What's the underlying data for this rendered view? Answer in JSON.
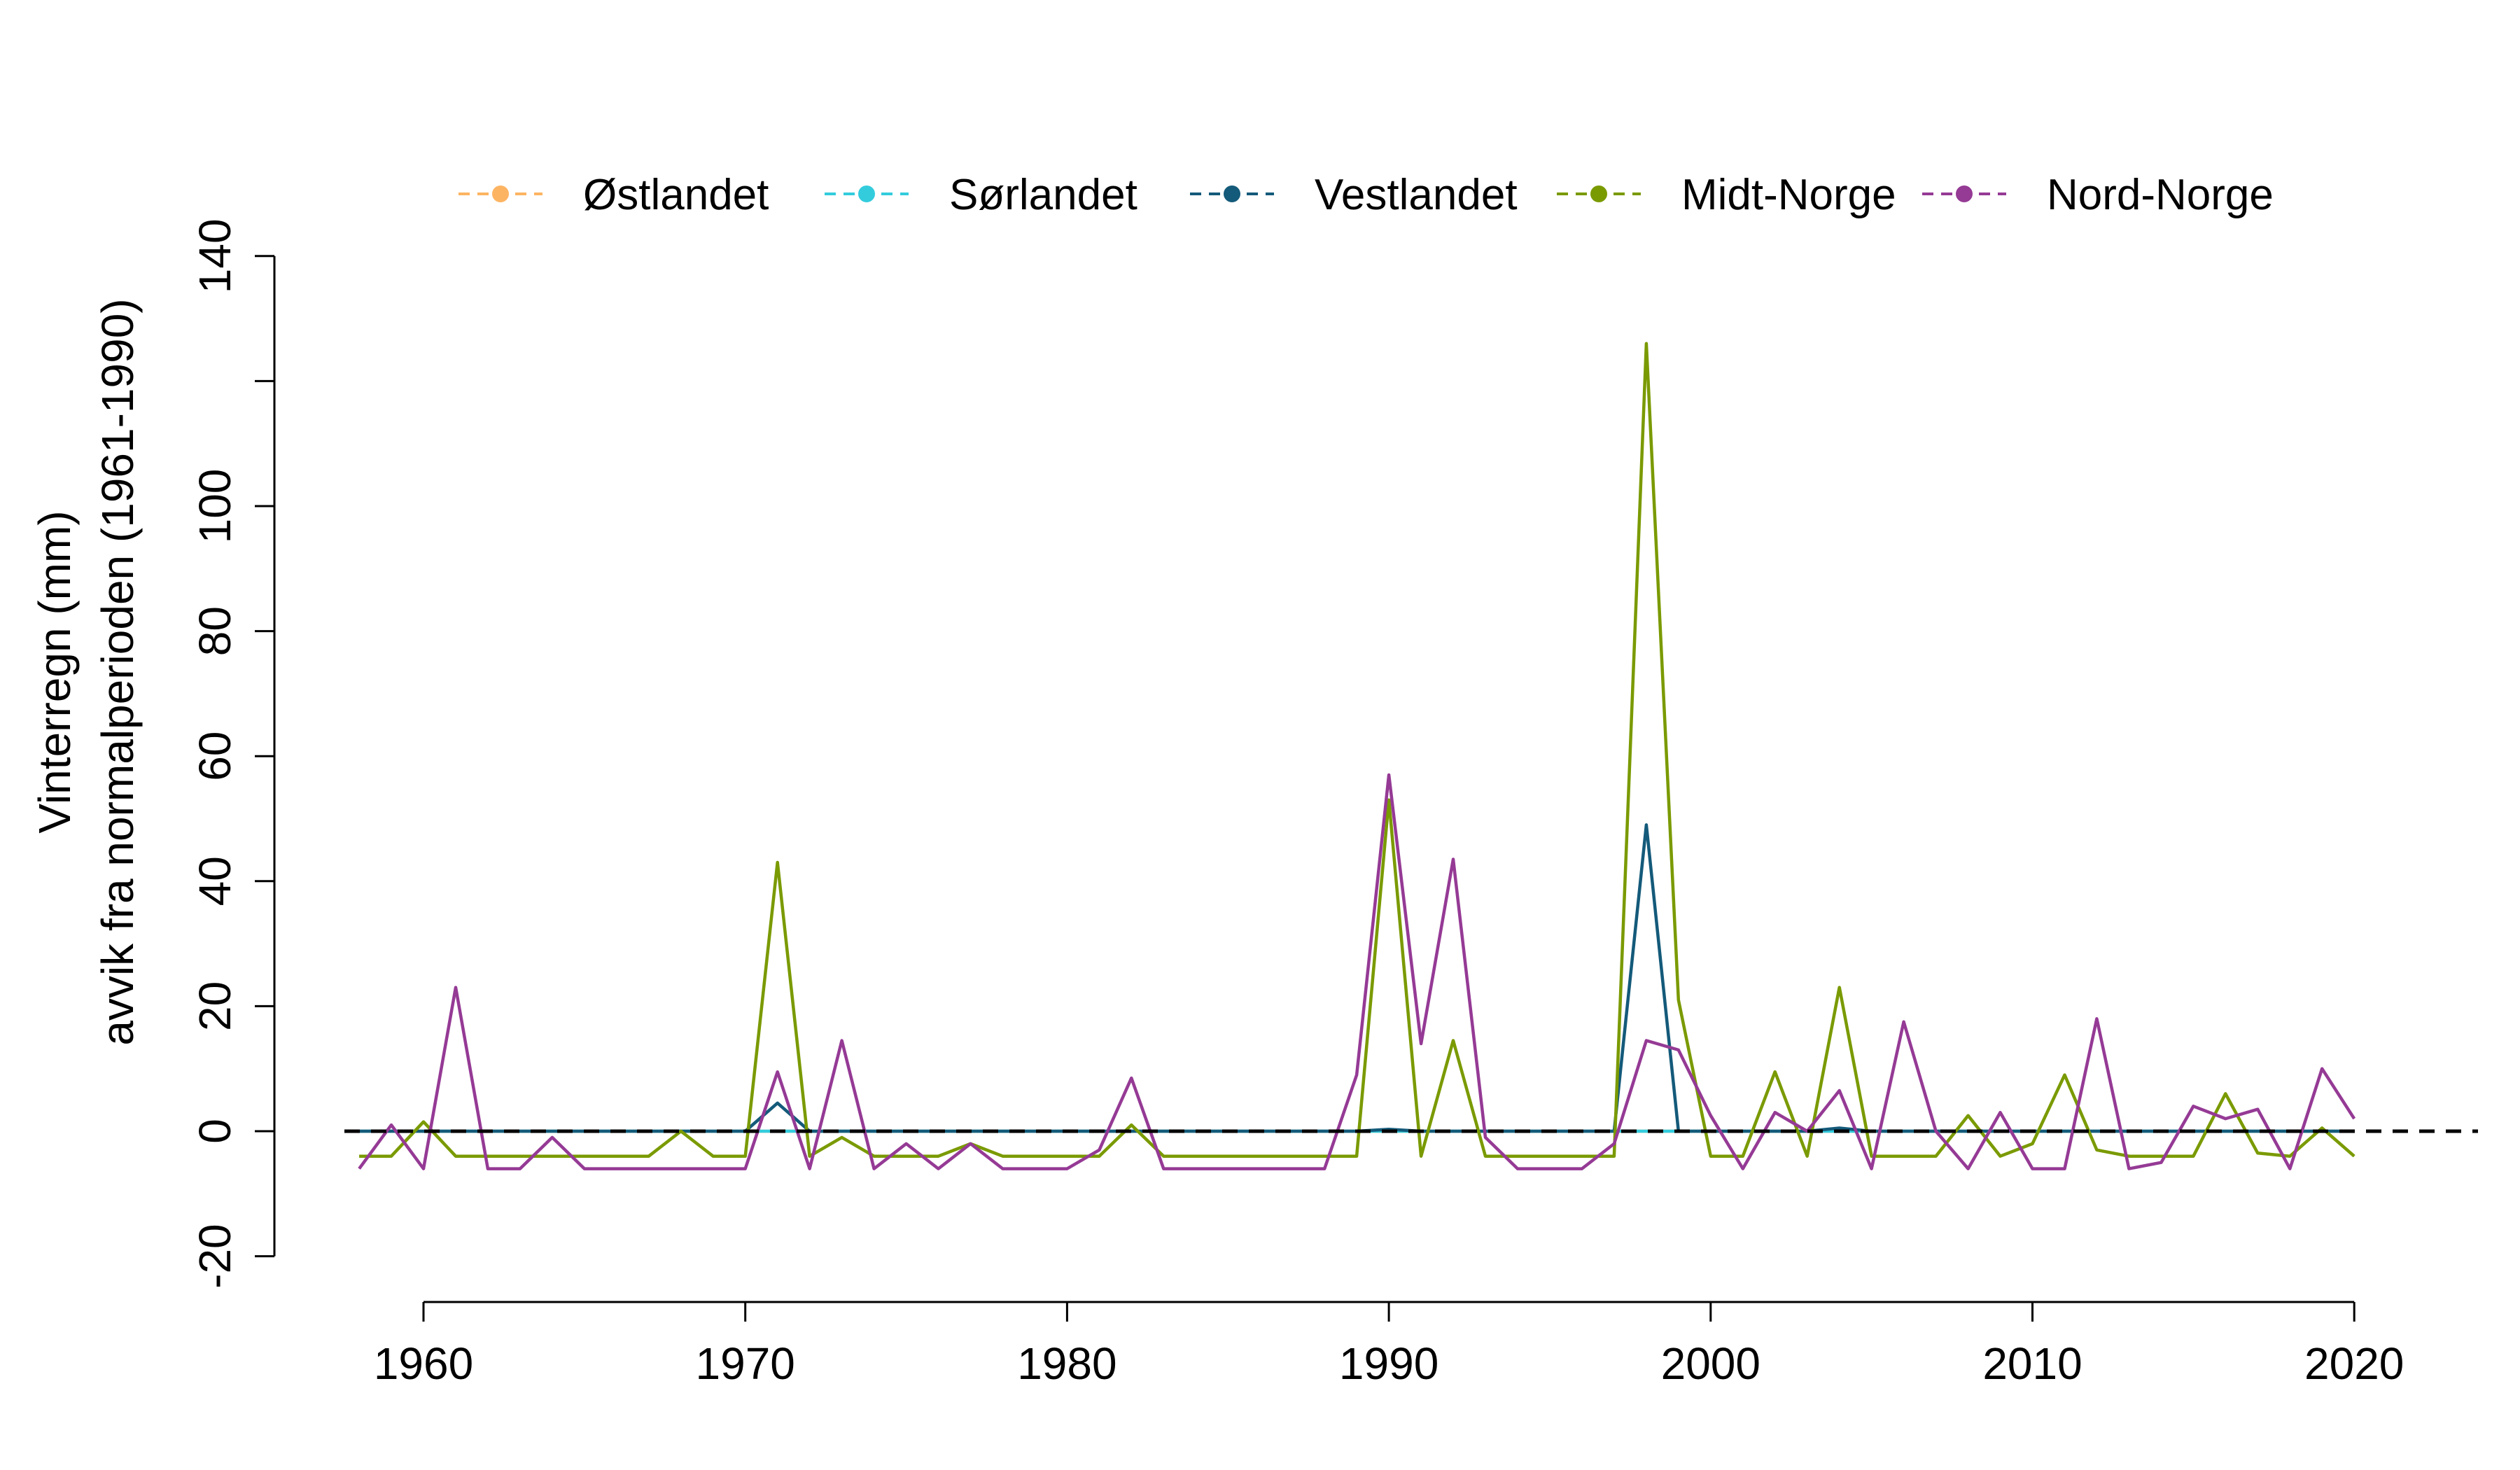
{
  "chart_data": {
    "type": "line",
    "ylabel_lines": [
      "Vinterregn (mm)",
      "avvik fra normalperioden (1961-1990)"
    ],
    "xlim": [
      1958,
      2020
    ],
    "ylim": [
      -20,
      140
    ],
    "xticks": [
      1960,
      1970,
      1980,
      1990,
      2000,
      2010,
      2020
    ],
    "yticks": [
      -20,
      0,
      20,
      40,
      60,
      80,
      100,
      120,
      140
    ],
    "ytick_labels": [
      "-20",
      "0",
      "20",
      "40",
      "60",
      "80",
      "100",
      "",
      "140"
    ],
    "reference_line": {
      "y": 0,
      "style": "dashed",
      "color": "#000000"
    },
    "legend_position": "top",
    "x": [
      1958,
      1959,
      1960,
      1961,
      1962,
      1963,
      1964,
      1965,
      1966,
      1967,
      1968,
      1969,
      1970,
      1971,
      1972,
      1973,
      1974,
      1975,
      1976,
      1977,
      1978,
      1979,
      1980,
      1981,
      1982,
      1983,
      1984,
      1985,
      1986,
      1987,
      1988,
      1989,
      1990,
      1991,
      1992,
      1993,
      1994,
      1995,
      1996,
      1997,
      1998,
      1999,
      2000,
      2001,
      2002,
      2003,
      2004,
      2005,
      2006,
      2007,
      2008,
      2009,
      2010,
      2011,
      2012,
      2013,
      2014,
      2015,
      2016,
      2017,
      2018,
      2019,
      2020
    ],
    "series": [
      {
        "name": "Østlandet",
        "color": "#FDB462",
        "values": [
          0,
          0,
          0,
          0,
          0,
          0,
          0,
          0,
          0,
          0,
          0,
          0,
          0,
          0,
          0,
          0,
          0,
          0,
          0,
          0,
          0,
          0,
          0,
          0,
          0,
          0,
          0,
          0,
          0,
          0,
          0,
          0,
          0,
          0,
          0,
          0,
          0,
          0,
          0,
          0,
          0,
          0,
          0,
          0,
          0,
          0,
          0,
          0,
          0,
          0,
          0,
          0,
          0,
          0,
          0,
          0,
          0,
          0,
          0,
          0,
          0,
          0,
          0
        ]
      },
      {
        "name": "Sørlandet",
        "color": "#33CCDD",
        "values": [
          0,
          0,
          0,
          0,
          0,
          0,
          0,
          0,
          0,
          0,
          0,
          0,
          0,
          0,
          0,
          0,
          0,
          0,
          0,
          0,
          0,
          0,
          0,
          0,
          0,
          0,
          0,
          0,
          0,
          0,
          0,
          0,
          0,
          0,
          0,
          0,
          0,
          0,
          0,
          0,
          0,
          0,
          0,
          0,
          0,
          0,
          0,
          0,
          0,
          0,
          0,
          0,
          0,
          0,
          0,
          0,
          0,
          0,
          0,
          0,
          0,
          0,
          0
        ]
      },
      {
        "name": "Vestlandet",
        "color": "#145A7A",
        "values": [
          0,
          0,
          0,
          0,
          0,
          0,
          0,
          0,
          0,
          0,
          0,
          0,
          0,
          4.5,
          0,
          0,
          0,
          0,
          0,
          0,
          0,
          0,
          0,
          0,
          0,
          0,
          0,
          0,
          0,
          0,
          0,
          0,
          0.3,
          0,
          0,
          0,
          0,
          0,
          0,
          0,
          49,
          0,
          0,
          0,
          0,
          0,
          0.5,
          0,
          0,
          0,
          0,
          0,
          0,
          0,
          0,
          0,
          0,
          0,
          0,
          0,
          0,
          0,
          0
        ]
      },
      {
        "name": "Midt-Norge",
        "color": "#7A9A01",
        "values": [
          -4,
          -4,
          1.5,
          -4,
          -4,
          -4,
          -4,
          -4,
          -4,
          -4,
          0,
          -4,
          -4,
          43,
          -4,
          -1,
          -4,
          -4,
          -4,
          -2,
          -4,
          -4,
          -4,
          -4,
          1,
          -4,
          -4,
          -4,
          -4,
          -4,
          -4,
          -4,
          53,
          -4,
          14.5,
          -4,
          -4,
          -4,
          -4,
          -4,
          126,
          21,
          -4,
          -4,
          9.5,
          -4,
          23,
          -4,
          -4,
          -4,
          2.5,
          -4,
          -2,
          9,
          -3,
          -4,
          -4,
          -4,
          6,
          -3.5,
          -4,
          0.5,
          -4
        ]
      },
      {
        "name": "Nord-Norge",
        "color": "#953A95",
        "values": [
          -6,
          1,
          -6,
          23,
          -6,
          -6,
          -1,
          -6,
          -6,
          -6,
          -6,
          -6,
          -6,
          9.5,
          -6,
          14.5,
          -6,
          -2,
          -6,
          -2,
          -6,
          -6,
          -6,
          -3,
          8.5,
          -6,
          -6,
          -6,
          -6,
          -6,
          -6,
          9,
          57,
          14,
          43.5,
          -1,
          -6,
          -6,
          -6,
          -2,
          14.5,
          13,
          2.5,
          -6,
          3,
          0,
          6.5,
          -6,
          17.5,
          0,
          -6,
          3,
          -6,
          -6,
          18,
          -6,
          -5,
          4,
          2,
          3.5,
          -6,
          10,
          2
        ]
      }
    ]
  }
}
